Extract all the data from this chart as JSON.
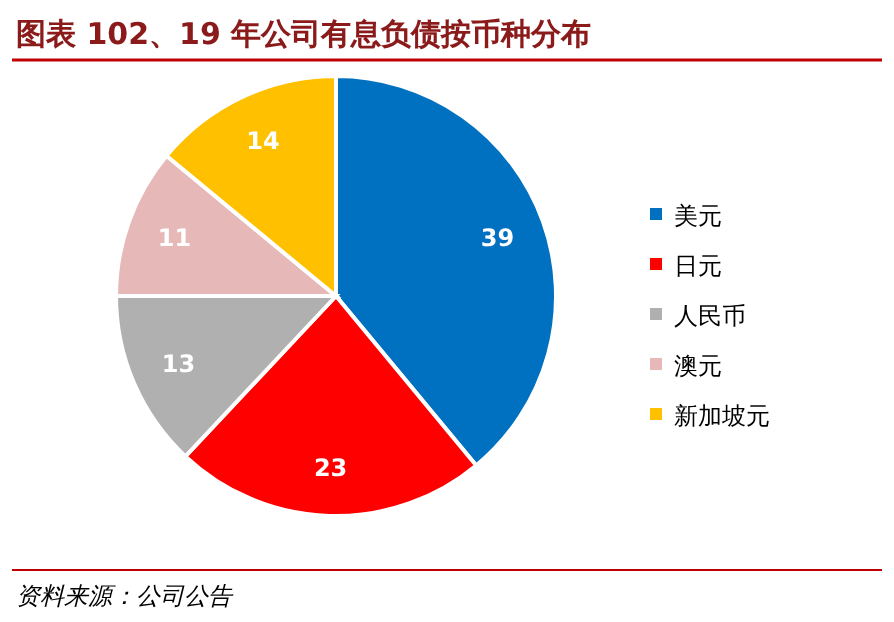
{
  "chart_data": {
    "type": "pie",
    "title": "图表 102、19 年公司有息负债按币种分布",
    "categories": [
      "美元",
      "日元",
      "人民币",
      "澳元",
      "新加坡元"
    ],
    "values": [
      39,
      23,
      13,
      11,
      14
    ],
    "colors": [
      "#0070c0",
      "#ff0000",
      "#b0b0b0",
      "#e6b9b8",
      "#ffc000"
    ],
    "data_labels": true,
    "legend": "right",
    "annotations": [
      "资料来源：公司公告"
    ]
  }
}
